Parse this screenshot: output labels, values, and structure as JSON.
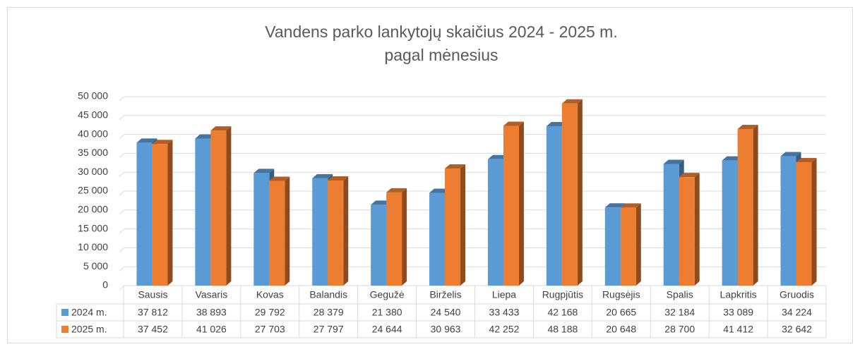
{
  "chart_data": {
    "type": "bar3d",
    "title": [
      "Vandens parko lankytojų skaičius 2024 - 2025 m.",
      "pagal mėnesius"
    ],
    "categories": [
      "Sausis",
      "Vasaris",
      "Kovas",
      "Balandis",
      "Gegužė",
      "Birželis",
      "Liepa",
      "Rugpjūtis",
      "Rugsėjis",
      "Spalis",
      "Lapkritis",
      "Gruodis"
    ],
    "series": [
      {
        "name": "2024 m.",
        "color": "#5b9bd5",
        "values": [
          37812,
          38893,
          29792,
          28379,
          21380,
          24540,
          33433,
          42168,
          20665,
          32184,
          33089,
          34224
        ],
        "value_labels": [
          "37 812",
          "38 893",
          "29 792",
          "28 379",
          "21 380",
          "24 540",
          "33 433",
          "42 168",
          "20 665",
          "32 184",
          "33 089",
          "34 224"
        ]
      },
      {
        "name": "2025 m.",
        "color": "#ed7d31",
        "values": [
          37452,
          41026,
          27703,
          27797,
          24644,
          30963,
          42252,
          48188,
          20648,
          28700,
          41412,
          32642
        ],
        "value_labels": [
          "37 452",
          "41 026",
          "27 703",
          "27 797",
          "24 644",
          "30 963",
          "42 252",
          "48 188",
          "20 648",
          "28 700",
          "41 412",
          "32 642"
        ]
      }
    ],
    "ylim": [
      0,
      50000
    ],
    "yticks": [
      0,
      {
        "value": 5000,
        "label": "5 000"
      },
      {
        "value": 10000,
        "label": "10 000"
      },
      {
        "value": 15000,
        "label": "15 000"
      },
      {
        "value": 20000,
        "label": "20 000"
      },
      {
        "value": 25000,
        "label": "25 000"
      },
      {
        "value": 30000,
        "label": "30 000"
      },
      {
        "value": 35000,
        "label": "35 000"
      },
      {
        "value": 40000,
        "label": "40 000"
      },
      {
        "value": 45000,
        "label": "45 000"
      },
      {
        "value": 50000,
        "label": "50 000"
      }
    ],
    "grid": true,
    "legend": "table"
  }
}
